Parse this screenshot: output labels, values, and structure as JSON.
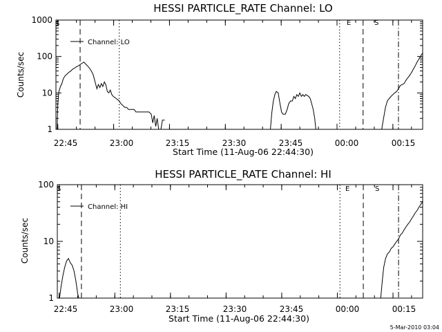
{
  "chart_data": [
    {
      "type": "line",
      "title": "HESSI PARTICLE_RATE Channel: LO",
      "xlabel": "Start Time (11-Aug-06 22:44:30)",
      "ylabel": "Counts/sec",
      "yscale": "log",
      "ylim": [
        1,
        1000
      ],
      "xlim_minutes_from_start": [
        0,
        98.5
      ],
      "x_tick_labels": [
        "22:45",
        "23:00",
        "23:15",
        "23:30",
        "23:45",
        "00:00",
        "00:15"
      ],
      "y_tick_labels": [
        "1",
        "10",
        "100",
        "1000"
      ],
      "grid": false,
      "legend": {
        "position": "top-left",
        "entries": [
          "Channel: LO"
        ]
      },
      "marker_labels": {
        "S_left": "S",
        "E": "E",
        "S_right": "S"
      },
      "series": [
        {
          "name": "Channel: LO",
          "segments": [
            [
              [
                0.3,
                1.0
              ],
              [
                0.5,
                5
              ],
              [
                0.8,
                11
              ],
              [
                1.2,
                15
              ],
              [
                1.6,
                18
              ],
              [
                2.0,
                25
              ],
              [
                2.5,
                30
              ],
              [
                3.0,
                33
              ],
              [
                3.5,
                37
              ],
              [
                4.0,
                40
              ],
              [
                4.5,
                45
              ],
              [
                5.0,
                48
              ],
              [
                5.5,
                52
              ],
              [
                6.0,
                55
              ],
              [
                6.5,
                60
              ],
              [
                7.0,
                65
              ],
              [
                7.5,
                70
              ],
              [
                8.0,
                62
              ],
              [
                8.5,
                55
              ],
              [
                9.0,
                48
              ],
              [
                9.5,
                40
              ],
              [
                10.0,
                32
              ],
              [
                10.4,
                22
              ],
              [
                10.7,
                17
              ],
              [
                11.0,
                13
              ],
              [
                11.4,
                17
              ],
              [
                11.8,
                14
              ],
              [
                12.2,
                18
              ],
              [
                12.6,
                15
              ],
              [
                13.0,
                20
              ],
              [
                13.4,
                17
              ],
              [
                13.8,
                11
              ],
              [
                14.2,
                10
              ],
              [
                14.6,
                12
              ],
              [
                15.0,
                9
              ],
              [
                15.4,
                8
              ],
              [
                15.8,
                7.5
              ],
              [
                16.2,
                7
              ],
              [
                16.6,
                6.5
              ],
              [
                17.0,
                6
              ],
              [
                17.5,
                5
              ],
              [
                18.0,
                4.5
              ],
              [
                18.5,
                4
              ],
              [
                19.0,
                4
              ],
              [
                19.5,
                3.5
              ],
              [
                20.0,
                3.5
              ],
              [
                21.0,
                3.5
              ],
              [
                21.5,
                3.0
              ],
              [
                22.0,
                3.0
              ],
              [
                23.0,
                3.0
              ],
              [
                24.0,
                3.0
              ],
              [
                25.0,
                3.0
              ],
              [
                25.6,
                2.6
              ],
              [
                26.0,
                1.5
              ],
              [
                26.4,
                2.4
              ],
              [
                26.8,
                1.2
              ],
              [
                27.2,
                2.0
              ],
              [
                27.6,
                1.0
              ]
            ],
            [
              [
                28.2,
                1.0
              ],
              [
                28.6,
                1.8
              ],
              [
                29.2,
                1.8
              ]
            ],
            [
              [
                57.6,
                1.0
              ],
              [
                58.0,
                3.0
              ],
              [
                58.4,
                6
              ],
              [
                58.8,
                9
              ],
              [
                59.2,
                11
              ],
              [
                59.7,
                10
              ],
              [
                60.2,
                5
              ],
              [
                60.6,
                3
              ],
              [
                61.0,
                2.6
              ],
              [
                61.6,
                2.6
              ],
              [
                62.1,
                3.5
              ],
              [
                62.5,
                5
              ],
              [
                63.0,
                6
              ],
              [
                63.5,
                6
              ],
              [
                63.9,
                8
              ],
              [
                64.3,
                7
              ],
              [
                64.7,
                9
              ],
              [
                65.1,
                8
              ],
              [
                65.5,
                10
              ],
              [
                65.9,
                8
              ],
              [
                66.3,
                9
              ],
              [
                66.7,
                8
              ],
              [
                67.1,
                9
              ],
              [
                67.5,
                8.5
              ],
              [
                67.9,
                8
              ],
              [
                68.3,
                7
              ],
              [
                68.7,
                5
              ],
              [
                69.1,
                3.5
              ],
              [
                69.5,
                2
              ],
              [
                69.8,
                1.0
              ]
            ],
            [
              [
                87.5,
                1.0
              ],
              [
                88.0,
                2
              ],
              [
                88.5,
                4
              ],
              [
                89.0,
                6
              ],
              [
                89.5,
                7
              ],
              [
                90.0,
                8
              ],
              [
                90.5,
                9
              ],
              [
                91.0,
                10
              ],
              [
                91.5,
                11
              ],
              [
                92.0,
                13
              ],
              [
                92.5,
                16
              ],
              [
                93.0,
                17
              ],
              [
                93.5,
                18
              ],
              [
                94.0,
                22
              ],
              [
                94.5,
                26
              ],
              [
                95.0,
                30
              ],
              [
                95.5,
                36
              ],
              [
                96.0,
                45
              ],
              [
                96.5,
                55
              ],
              [
                97.0,
                70
              ],
              [
                97.5,
                85
              ],
              [
                98.0,
                105
              ],
              [
                98.5,
                125
              ]
            ]
          ]
        }
      ],
      "vlines_minutes": [
        {
          "at": 6.5,
          "style": "dashed"
        },
        {
          "at": 17.0,
          "style": "dotted"
        },
        {
          "at": 76.2,
          "style": "dotted"
        },
        {
          "at": 82.5,
          "style": "dashed"
        },
        {
          "at": 92.0,
          "style": "dashdot"
        }
      ]
    },
    {
      "type": "line",
      "title": "HESSI PARTICLE_RATE Channel: HI",
      "xlabel": "Start Time (11-Aug-06 22:44:30)",
      "ylabel": "Counts/sec",
      "yscale": "log",
      "ylim": [
        1,
        100
      ],
      "xlim_minutes_from_start": [
        0,
        98.5
      ],
      "x_tick_labels": [
        "22:45",
        "23:00",
        "23:15",
        "23:30",
        "23:45",
        "00:00",
        "00:15"
      ],
      "y_tick_labels": [
        "1",
        "10",
        "100"
      ],
      "grid": false,
      "legend": {
        "position": "top-left",
        "entries": [
          "Channel: HI"
        ]
      },
      "marker_labels": {
        "S_left": "S",
        "E": "E",
        "S_right": "S"
      },
      "series": [
        {
          "name": "Channel: HI",
          "segments": [
            [
              [
                0.6,
                1.0
              ],
              [
                1.0,
                1.6
              ],
              [
                1.5,
                2.5
              ],
              [
                2.0,
                3.5
              ],
              [
                2.5,
                4.5
              ],
              [
                3.0,
                5.0
              ],
              [
                3.5,
                4.2
              ],
              [
                4.0,
                3.8
              ],
              [
                4.5,
                3.0
              ],
              [
                5.0,
                2.0
              ],
              [
                5.5,
                1.2
              ],
              [
                5.8,
                1.0
              ]
            ],
            [
              [
                87.2,
                1.0
              ],
              [
                87.6,
                2
              ],
              [
                88.0,
                3.5
              ],
              [
                88.5,
                5
              ],
              [
                89.0,
                6
              ],
              [
                89.5,
                6.5
              ],
              [
                90.0,
                7.5
              ],
              [
                90.5,
                8
              ],
              [
                91.0,
                9
              ],
              [
                91.5,
                10
              ],
              [
                92.0,
                11
              ],
              [
                92.5,
                13
              ],
              [
                93.0,
                14
              ],
              [
                93.5,
                16
              ],
              [
                94.0,
                18
              ],
              [
                94.5,
                20
              ],
              [
                95.0,
                22
              ],
              [
                95.5,
                25
              ],
              [
                96.0,
                28
              ],
              [
                96.5,
                32
              ],
              [
                97.0,
                35
              ],
              [
                97.5,
                40
              ],
              [
                98.0,
                45
              ],
              [
                98.5,
                50
              ]
            ]
          ]
        }
      ],
      "vlines_minutes": [
        {
          "at": 6.5,
          "style": "dashed"
        },
        {
          "at": 17.0,
          "style": "dotted"
        },
        {
          "at": 76.2,
          "style": "dotted"
        },
        {
          "at": 82.5,
          "style": "dashed"
        },
        {
          "at": 92.0,
          "style": "dashdot"
        }
      ]
    }
  ],
  "footer": "5-Mar-2010 03:04"
}
